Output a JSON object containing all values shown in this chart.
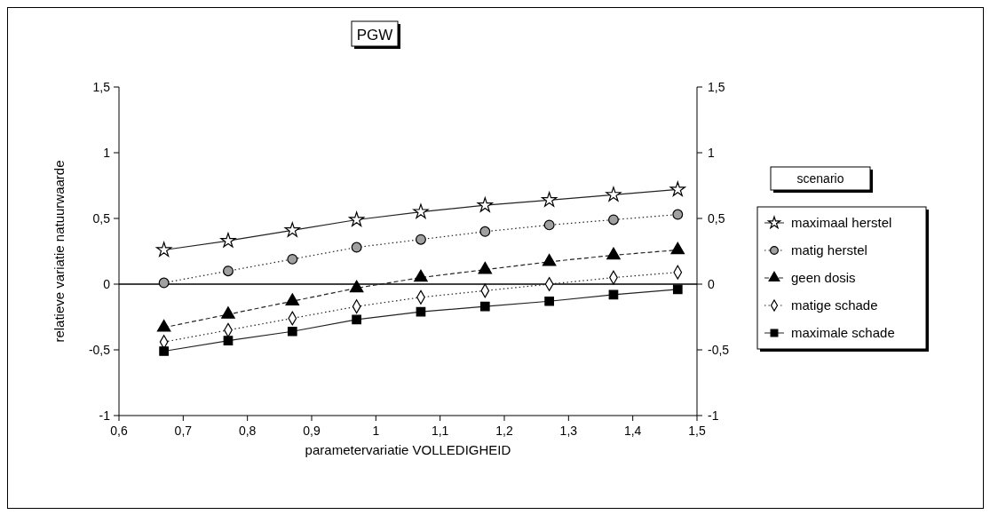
{
  "chart_data": {
    "type": "line",
    "title": "PGW",
    "xlabel": "parametervariatie VOLLEDIGHEID",
    "ylabel": "relatieve variatie natuurwaarde",
    "legend_title": "scenario",
    "legend": "right",
    "x": [
      0.67,
      0.77,
      0.87,
      0.97,
      1.07,
      1.17,
      1.27,
      1.37,
      1.47
    ],
    "series": [
      {
        "name": "maximaal herstel",
        "color": "#000000",
        "marker": "star",
        "line_style": "solid",
        "values": [
          0.26,
          0.33,
          0.41,
          0.49,
          0.55,
          0.6,
          0.64,
          0.68,
          0.72
        ]
      },
      {
        "name": "matig herstel",
        "color": "#a0a0a0",
        "marker": "circle",
        "line_style": "dotted",
        "values": [
          0.01,
          0.1,
          0.19,
          0.28,
          0.34,
          0.4,
          0.45,
          0.49,
          0.53
        ]
      },
      {
        "name": "geen dosis",
        "color": "#000000",
        "marker": "triangle",
        "line_style": "dashed",
        "values": [
          -0.33,
          -0.23,
          -0.13,
          -0.03,
          0.05,
          0.11,
          0.17,
          0.22,
          0.26
        ]
      },
      {
        "name": "matige schade",
        "color": "#ffffff",
        "marker": "diamond",
        "line_style": "dotted",
        "values": [
          -0.44,
          -0.35,
          -0.26,
          -0.17,
          -0.1,
          -0.05,
          0.0,
          0.05,
          0.09
        ]
      },
      {
        "name": "maximale schade",
        "color": "#000000",
        "marker": "square",
        "line_style": "solid",
        "values": [
          -0.51,
          -0.43,
          -0.36,
          -0.27,
          -0.21,
          -0.17,
          -0.13,
          -0.08,
          -0.04
        ]
      }
    ],
    "xlim": [
      0.6,
      1.5
    ],
    "xticks": [
      {
        "value": 0.6,
        "label": "0,6"
      },
      {
        "value": 0.7,
        "label": "0,7"
      },
      {
        "value": 0.8,
        "label": "0,8"
      },
      {
        "value": 0.9,
        "label": "0,9"
      },
      {
        "value": 1,
        "label": "1"
      },
      {
        "value": 1.1,
        "label": "1,1"
      },
      {
        "value": 1.2,
        "label": "1,2"
      },
      {
        "value": 1.3,
        "label": "1,3"
      },
      {
        "value": 1.4,
        "label": "1,4"
      },
      {
        "value": 1.5,
        "label": "1,5"
      }
    ],
    "ylim": [
      -1,
      1.5
    ],
    "yticks": [
      -1,
      {
        "value": -0.5,
        "label": "-0,5"
      },
      0,
      {
        "value": 0.5,
        "label": "0,5"
      },
      1,
      {
        "value": 1.5,
        "label": "1,5"
      }
    ],
    "y2lim": [
      -1,
      1.5
    ],
    "y2ticks": [
      -1,
      {
        "value": -0.5,
        "label": "-0,5"
      },
      0,
      {
        "value": 0.5,
        "label": "0,5"
      },
      1,
      {
        "value": 1.5,
        "label": "1,5"
      }
    ],
    "ref_lines": [
      {
        "axis": "y",
        "value": 0,
        "color": "#000000",
        "line_style": "solid"
      }
    ]
  }
}
